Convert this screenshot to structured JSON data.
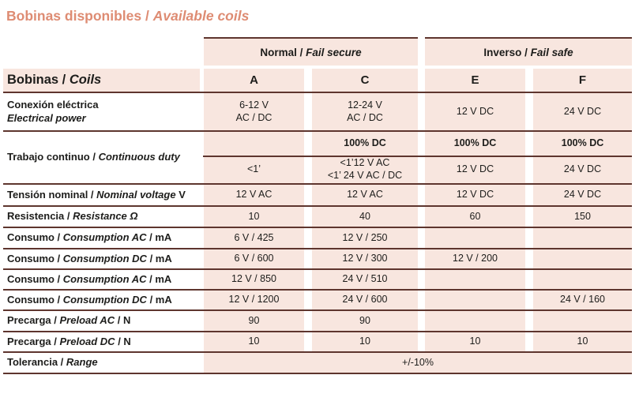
{
  "title": {
    "es": "Bobinas disponibles /",
    "en": "Available coils"
  },
  "groups": {
    "normal": {
      "es": "Normal /",
      "en": "Fail secure"
    },
    "inverso": {
      "es": "Inverso /",
      "en": "Fail safe"
    }
  },
  "header": {
    "label_es": "Bobinas /",
    "label_en": "Coils",
    "col_a": "A",
    "col_c": "C",
    "col_e": "E",
    "col_f": "F"
  },
  "rows": {
    "conexion": {
      "label_es": "Conexión eléctrica",
      "label_en": "Electrical power",
      "a_line1": "6-12 V",
      "a_line2": "AC / DC",
      "c_line1": "12-24 V",
      "c_line2": "AC / DC",
      "e": "12 V DC",
      "f": "24 V DC"
    },
    "trabajo": {
      "label_es": "Trabajo continuo /",
      "label_en": "Continuous duty",
      "duty_a": "",
      "duty_c": "100% DC",
      "duty_e": "100% DC",
      "duty_f": "100% DC",
      "a": "<1’",
      "c_line1": "<1’12 V AC",
      "c_line2": "<1’ 24 V AC / DC",
      "e": "12 V DC",
      "f": "24 V DC"
    },
    "tension": {
      "label_es": "Tensión nominal /",
      "label_en": "Nominal voltage",
      "label_suffix": "V",
      "a": "12 V AC",
      "c": "12 V AC",
      "e": "12 V DC",
      "f": "24 V DC"
    },
    "resistencia": {
      "label_es": "Resistencia /",
      "label_en": "Resistance Ω",
      "a": "10",
      "c": "40",
      "e": "60",
      "f": "150"
    },
    "consumo_ac_1": {
      "label_es": "Consumo /",
      "label_en": "Consumption AC",
      "label_suffix": "/ mA",
      "a": "6 V / 425",
      "c": "12 V / 250",
      "e": "",
      "f": ""
    },
    "consumo_dc_1": {
      "label_es": "Consumo /",
      "label_en": "Consumption DC",
      "label_suffix": "/ mA",
      "a": "6 V / 600",
      "c": "12 V / 300",
      "e": "12 V / 200",
      "f": ""
    },
    "consumo_ac_2": {
      "label_es": "Consumo /",
      "label_en": "Consumption AC",
      "label_suffix": "/ mA",
      "a": "12 V / 850",
      "c": "24 V / 510",
      "e": "",
      "f": ""
    },
    "consumo_dc_2": {
      "label_es": "Consumo /",
      "label_en": "Consumption DC",
      "label_suffix": "/ mA",
      "a": "12 V / 1200",
      "c": "24 V / 600",
      "e": "",
      "f": "24 V / 160"
    },
    "precarga_ac": {
      "label_es": "Precarga /",
      "label_en": "Preload AC",
      "label_suffix": "/ N",
      "a": "90",
      "c": "90",
      "e": "",
      "f": ""
    },
    "precarga_dc": {
      "label_es": "Precarga /",
      "label_en": "Preload DC",
      "label_suffix": "/ N",
      "a": "10",
      "c": "10",
      "e": "10",
      "f": "10"
    },
    "tolerancia": {
      "label_es": "Tolerancia /",
      "label_en": "Range",
      "value": "+/-10%"
    }
  },
  "colors": {
    "accent": "#de8c73",
    "cell_bg": "#f8e6df",
    "line": "#5e352e",
    "ink": "#1d1d1b"
  }
}
